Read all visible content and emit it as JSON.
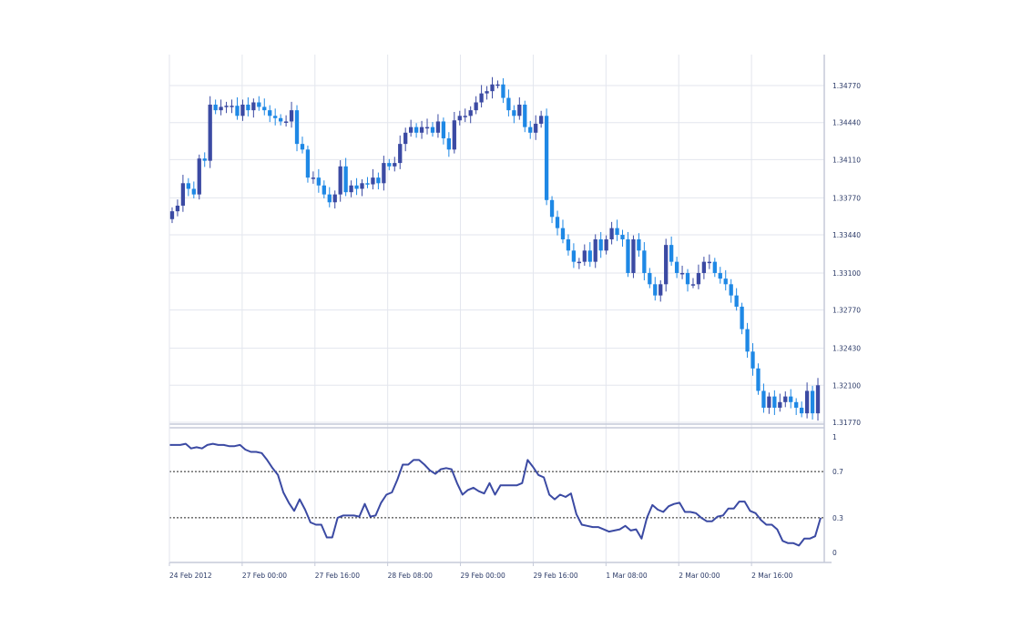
{
  "chart_data": [
    {
      "type": "candlestick",
      "title": "",
      "xlabel": "",
      "ylabel": "",
      "x_tick_labels": [
        "24 Feb 2012",
        "27 Feb 00:00",
        "27 Feb 16:00",
        "28 Feb 08:00",
        "29 Feb 00:00",
        "29 Feb 16:00",
        "1 Mar 08:00",
        "2 Mar 00:00",
        "2 Mar 16:00"
      ],
      "y_tick_labels": [
        "1.34770",
        "1.34440",
        "1.34110",
        "1.33770",
        "1.33440",
        "1.33100",
        "1.32770",
        "1.32430",
        "1.32100",
        "1.31770"
      ],
      "ylim": [
        1.3169,
        1.35
      ],
      "grid": true,
      "colors": {
        "bullish": "#3b4aa3",
        "bearish": "#1e88e5",
        "grid": "#e3e6ee",
        "axis": "#c5cad9"
      },
      "series": [
        {
          "close": [
            1.3365,
            1.337,
            1.339,
            1.3385,
            1.338,
            1.3412,
            1.341,
            1.346,
            1.3455,
            1.3458,
            1.3459,
            1.3459,
            1.345,
            1.346,
            1.3455,
            1.3462,
            1.3458,
            1.3455,
            1.345,
            1.3448,
            1.3445,
            1.3445,
            1.3455,
            1.3425,
            1.342,
            1.3395,
            1.3395,
            1.3388,
            1.338,
            1.3373,
            1.338,
            1.3405,
            1.3382,
            1.3388,
            1.3385,
            1.339,
            1.3389,
            1.3395,
            1.339,
            1.3408,
            1.3405,
            1.3408,
            1.3425,
            1.3435,
            1.344,
            1.3435,
            1.344,
            1.344,
            1.3435,
            1.3445,
            1.343,
            1.342,
            1.3446,
            1.345,
            1.345,
            1.3455,
            1.3462,
            1.347,
            1.3472,
            1.3478,
            1.3478,
            1.3466,
            1.3455,
            1.345,
            1.346,
            1.344,
            1.3435,
            1.3443,
            1.345,
            1.3375,
            1.336,
            1.335,
            1.334,
            1.333,
            1.332,
            1.332,
            1.333,
            1.332,
            1.334,
            1.333,
            1.334,
            1.335,
            1.3344,
            1.334,
            1.331,
            1.334,
            1.333,
            1.331,
            1.33,
            1.329,
            1.33,
            1.3335,
            1.332,
            1.331,
            1.331,
            1.33,
            1.33,
            1.331,
            1.332,
            1.332,
            1.331,
            1.3305,
            1.33,
            1.329,
            1.328,
            1.326,
            1.324,
            1.3225,
            1.3205,
            1.319,
            1.32,
            1.319,
            1.3195,
            1.32,
            1.3195,
            1.319,
            1.3185,
            1.3205,
            1.3185,
            1.321
          ],
          "open": [
            1.3358,
            1.3365,
            1.337,
            1.339,
            1.3385,
            1.338,
            1.3412,
            1.341,
            1.346,
            1.3455,
            1.3458,
            1.3459,
            1.3459,
            1.345,
            1.346,
            1.3455,
            1.3462,
            1.3458,
            1.3455,
            1.345,
            1.3448,
            1.3445,
            1.3445,
            1.3455,
            1.3425,
            1.342,
            1.3395,
            1.3395,
            1.3388,
            1.338,
            1.3373,
            1.338,
            1.3405,
            1.3382,
            1.3388,
            1.3385,
            1.339,
            1.3389,
            1.3395,
            1.339,
            1.3408,
            1.3405,
            1.3408,
            1.3425,
            1.3435,
            1.344,
            1.3435,
            1.344,
            1.344,
            1.3435,
            1.3445,
            1.343,
            1.342,
            1.3446,
            1.345,
            1.345,
            1.3455,
            1.3462,
            1.347,
            1.3472,
            1.3478,
            1.3478,
            1.3466,
            1.3455,
            1.345,
            1.346,
            1.344,
            1.3435,
            1.3443,
            1.345,
            1.3375,
            1.336,
            1.335,
            1.334,
            1.333,
            1.332,
            1.332,
            1.333,
            1.332,
            1.334,
            1.333,
            1.334,
            1.335,
            1.3344,
            1.334,
            1.331,
            1.334,
            1.333,
            1.331,
            1.33,
            1.329,
            1.33,
            1.3335,
            1.332,
            1.331,
            1.331,
            1.33,
            1.33,
            1.331,
            1.332,
            1.332,
            1.331,
            1.3305,
            1.33,
            1.329,
            1.328,
            1.326,
            1.324,
            1.3225,
            1.3205,
            1.319,
            1.32,
            1.319,
            1.3195,
            1.32,
            1.3195,
            1.319,
            1.3185,
            1.3205,
            1.3185
          ]
        }
      ]
    },
    {
      "type": "line",
      "title": "",
      "xlabel": "",
      "ylabel": "",
      "y_tick_labels": [
        "1",
        "0.7",
        "0.3",
        "0"
      ],
      "ylim": [
        0,
        1
      ],
      "reference_lines": [
        0.7,
        0.3
      ],
      "colors": {
        "line": "#3b4aa3",
        "reference": "#222222"
      },
      "series": [
        {
          "values": [
            0.93,
            0.93,
            0.93,
            0.94,
            0.9,
            0.91,
            0.9,
            0.93,
            0.94,
            0.93,
            0.93,
            0.92,
            0.92,
            0.93,
            0.89,
            0.87,
            0.87,
            0.86,
            0.8,
            0.73,
            0.67,
            0.52,
            0.43,
            0.36,
            0.46,
            0.37,
            0.26,
            0.24,
            0.24,
            0.13,
            0.13,
            0.3,
            0.32,
            0.32,
            0.32,
            0.31,
            0.42,
            0.31,
            0.32,
            0.43,
            0.5,
            0.52,
            0.63,
            0.76,
            0.76,
            0.8,
            0.8,
            0.76,
            0.71,
            0.68,
            0.72,
            0.73,
            0.72,
            0.6,
            0.5,
            0.54,
            0.56,
            0.53,
            0.51,
            0.6,
            0.5,
            0.58,
            0.58,
            0.58,
            0.58,
            0.6,
            0.8,
            0.74,
            0.67,
            0.65,
            0.5,
            0.46,
            0.5,
            0.48,
            0.51,
            0.33,
            0.24,
            0.23,
            0.22,
            0.22,
            0.2,
            0.18,
            0.19,
            0.2,
            0.23,
            0.19,
            0.2,
            0.12,
            0.3,
            0.41,
            0.37,
            0.35,
            0.4,
            0.42,
            0.43,
            0.35,
            0.35,
            0.34,
            0.3,
            0.27,
            0.27,
            0.31,
            0.32,
            0.38,
            0.38,
            0.44,
            0.44,
            0.36,
            0.34,
            0.28,
            0.24,
            0.24,
            0.2,
            0.1,
            0.08,
            0.08,
            0.06,
            0.12,
            0.12,
            0.14,
            0.3
          ]
        }
      ]
    }
  ]
}
